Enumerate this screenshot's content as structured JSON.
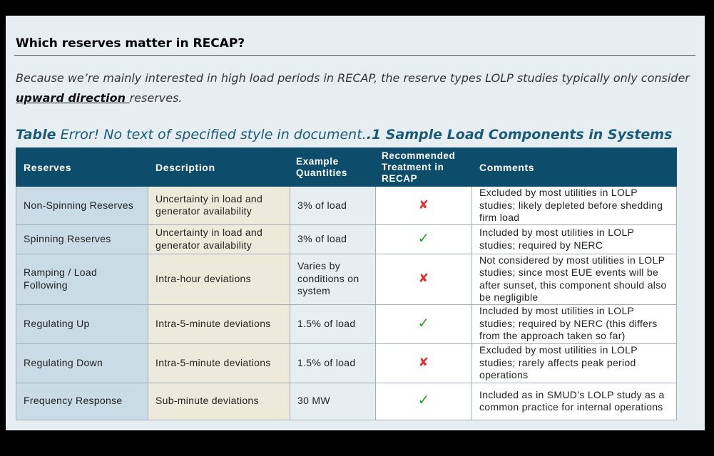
{
  "heading": "Which reserves matter in RECAP?",
  "intro": {
    "before": "Because we’re mainly interested in high load periods in RECAP, the reserve types LOLP studies typically only consider ",
    "emphasis": "upward direction ",
    "after": "reserves."
  },
  "caption": {
    "label": "Table",
    "error": " Error! No text of specified style in document.",
    "number": ".1 Sample Load Components in Systems"
  },
  "table": {
    "headers": {
      "reserves": "Reserves",
      "description": "Description",
      "quantities": "Example Quantities",
      "treatment": "Recommended Treatment in RECAP",
      "comments": "Comments"
    },
    "rows": [
      {
        "reserve": "Non-Spinning Reserves",
        "description": "Uncertainty in load and generator availability",
        "quantity": "3% of load",
        "treatment": "excluded",
        "treatment_icon": "red-x-icon",
        "comment": "Excluded by most utilities in LOLP studies; likely depleted before shedding firm load"
      },
      {
        "reserve": "Spinning Reserves",
        "description": "Uncertainty in load and generator availability",
        "quantity": "3% of load",
        "treatment": "included",
        "treatment_icon": "green-check-icon",
        "comment": "Included by most utilities in LOLP studies; required by NERC"
      },
      {
        "reserve": "Ramping / Load Following",
        "description": "Intra-hour deviations",
        "quantity": "Varies by conditions on system",
        "treatment": "excluded",
        "treatment_icon": "red-x-icon",
        "comment": "Not considered by most utilities in LOLP studies; since most EUE events will be after sunset, this component should also be negligible"
      },
      {
        "reserve": "Regulating Up",
        "description": "Intra-5-minute deviations",
        "quantity": "1.5% of load",
        "treatment": "included",
        "treatment_icon": "green-check-icon",
        "comment": "Included by most utilities in LOLP studies; required by NERC (this differs from the approach taken so far)"
      },
      {
        "reserve": "Regulating Down",
        "description": "Intra-5-minute deviations",
        "quantity": "1.5% of load",
        "treatment": "excluded",
        "treatment_icon": "red-x-icon",
        "comment": "Excluded by most utilities in LOLP studies; rarely affects peak period operations"
      },
      {
        "reserve": "Frequency Response",
        "description": "Sub-minute deviations",
        "quantity": "30 MW",
        "treatment": "included",
        "treatment_icon": "green-check-icon",
        "comment": "Included as in SMUD’s LOLP study as a common practice for internal operations"
      }
    ]
  },
  "colors": {
    "header_bg": "#0e4c6c",
    "caption": "#1a5a7a",
    "reserve_col_bg": "#c9dbe4",
    "description_col_bg": "#eeeadb",
    "excluded": "#e03030",
    "included": "#2aa52a"
  }
}
